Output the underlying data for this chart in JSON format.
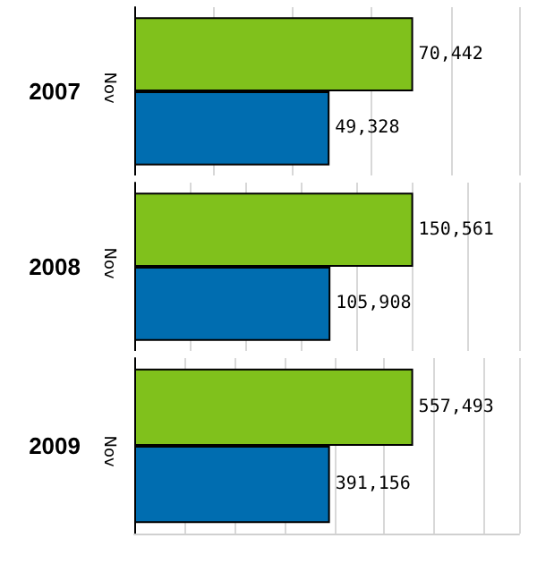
{
  "chart_data": [
    {
      "type": "bar",
      "orientation": "horizontal",
      "ylabel": "Nov",
      "categories": [
        "2007"
      ],
      "series": [
        {
          "color": "#80c11c",
          "values": [
            70442
          ],
          "value_labels": [
            "70,442"
          ]
        },
        {
          "color": "#006db0",
          "values": [
            49328
          ],
          "value_labels": [
            "49,328"
          ]
        }
      ],
      "grid": "x",
      "tick_labels": "y"
    },
    {
      "type": "bar",
      "orientation": "horizontal",
      "ylabel": "Nov",
      "categories": [
        "2008"
      ],
      "series": [
        {
          "color": "#80c11c",
          "values": [
            150561
          ],
          "value_labels": [
            "150,561"
          ]
        },
        {
          "color": "#006db0",
          "values": [
            105908
          ],
          "value_labels": [
            "105,908"
          ]
        }
      ],
      "grid": "x",
      "tick_labels": "y"
    },
    {
      "type": "bar",
      "orientation": "horizontal",
      "ylabel": "Nov",
      "categories": [
        "2009"
      ],
      "series": [
        {
          "color": "#80c11c",
          "values": [
            557493
          ],
          "value_labels": [
            "557,493"
          ]
        },
        {
          "color": "#006db0",
          "values": [
            391156
          ],
          "value_labels": [
            "391,156"
          ]
        }
      ],
      "grid": "x",
      "tick_labels": "y"
    }
  ]
}
